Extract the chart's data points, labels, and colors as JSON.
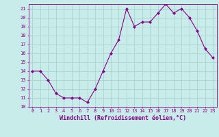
{
  "x": [
    0,
    1,
    2,
    3,
    4,
    5,
    6,
    7,
    8,
    9,
    10,
    11,
    12,
    13,
    14,
    15,
    16,
    17,
    18,
    19,
    20,
    21,
    22,
    23
  ],
  "y": [
    14,
    14,
    13,
    11.5,
    11,
    11,
    11,
    10.5,
    12,
    14,
    16,
    17.5,
    21,
    19,
    19.5,
    19.5,
    20.5,
    21.5,
    20.5,
    21,
    20,
    18.5,
    16.5,
    15.5
  ],
  "line_color": "#880088",
  "marker": "D",
  "marker_size": 2,
  "bg_color": "#c8ecea",
  "grid_color": "#aad4d0",
  "xlabel": "Windchill (Refroidissement éolien,°C)",
  "xlim": [
    -0.5,
    23.5
  ],
  "ylim": [
    10,
    21.5
  ],
  "yticks": [
    10,
    11,
    12,
    13,
    14,
    15,
    16,
    17,
    18,
    19,
    20,
    21
  ],
  "xticks": [
    0,
    1,
    2,
    3,
    4,
    5,
    6,
    7,
    8,
    9,
    10,
    11,
    12,
    13,
    14,
    15,
    16,
    17,
    18,
    19,
    20,
    21,
    22,
    23
  ],
  "tick_color": "#880088",
  "label_fontsize": 5.5,
  "tick_fontsize": 5.0,
  "xlabel_fontsize": 6.0
}
